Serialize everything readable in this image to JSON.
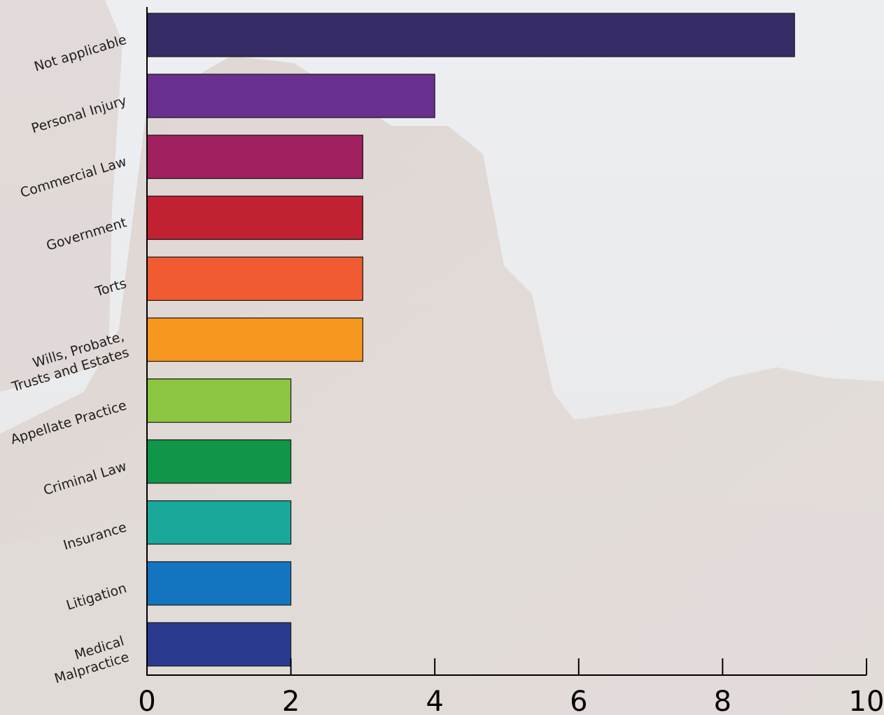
{
  "chart_data": {
    "type": "bar",
    "orientation": "horizontal",
    "categories": [
      "Not applicable",
      "Personal Injury",
      "Commercial Law",
      "Government",
      "Torts",
      "Wills, Probate,\nTrusts and Estates",
      "Appellate Practice",
      "Criminal Law",
      "Insurance",
      "Litigation",
      "Medical\nMalpractice"
    ],
    "values": [
      9,
      4,
      3,
      3,
      3,
      3,
      2,
      2,
      2,
      2,
      2
    ],
    "colors": [
      "#362d66",
      "#69308f",
      "#a02060",
      "#c12130",
      "#f05b31",
      "#f7961f",
      "#8cc540",
      "#0f9648",
      "#19a89a",
      "#1375bf",
      "#293a8f"
    ],
    "xlim": [
      0,
      10
    ],
    "xticks": [
      "0",
      "2",
      "4",
      "6",
      "8",
      "10"
    ],
    "title": "",
    "xlabel": "",
    "ylabel": "",
    "grid": false,
    "background": "faded desert butte photograph"
  }
}
